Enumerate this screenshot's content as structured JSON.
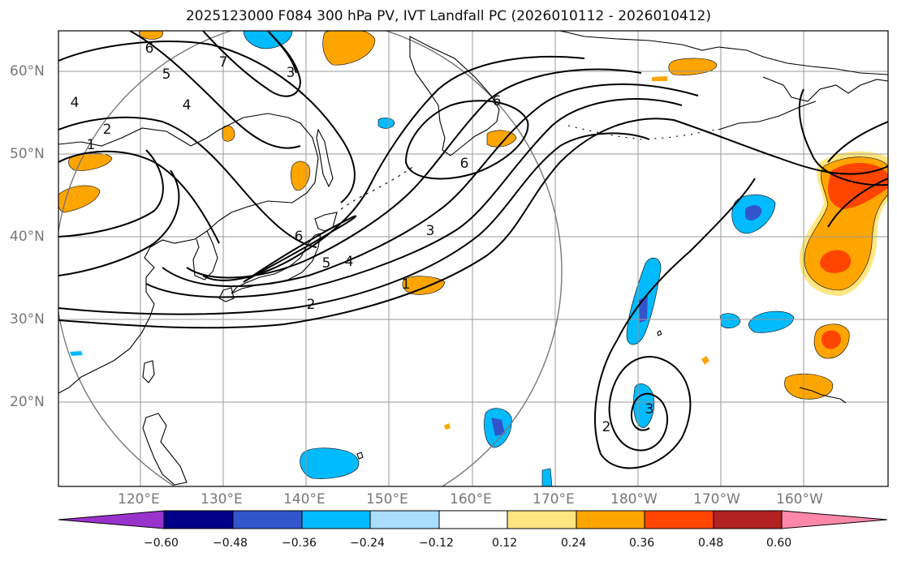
{
  "title": "2025123000 F084 300 hPa PV, IVT Landfall PC (2026010112 - 2026010412)",
  "map": {
    "lat_labels": [
      "20°N",
      "30°N",
      "40°N",
      "50°N",
      "60°N"
    ],
    "lon_labels": [
      "120°E",
      "130°E",
      "140°E",
      "150°E",
      "160°E",
      "170°E",
      "180°W",
      "170°W",
      "160°W"
    ],
    "grid": true,
    "coastline_color": "#000000"
  },
  "contour_labels": [
    "6",
    "7",
    "5",
    "3",
    "4",
    "2",
    "1",
    "4",
    "6",
    "6",
    "6",
    "5",
    "4",
    "3",
    "2",
    "1",
    "2",
    "3"
  ],
  "colorbar": {
    "ticks": [
      "−0.60",
      "−0.48",
      "−0.36",
      "−0.24",
      "−0.12",
      "0.12",
      "0.24",
      "0.36",
      "0.48",
      "0.60"
    ],
    "colors": [
      "#9933cc",
      "#000088",
      "#3355cc",
      "#00bbff",
      "#aaddff",
      "#ffffff",
      "#ffe680",
      "#ffa500",
      "#ff4500",
      "#b22222",
      "#ff88aa"
    ]
  }
}
